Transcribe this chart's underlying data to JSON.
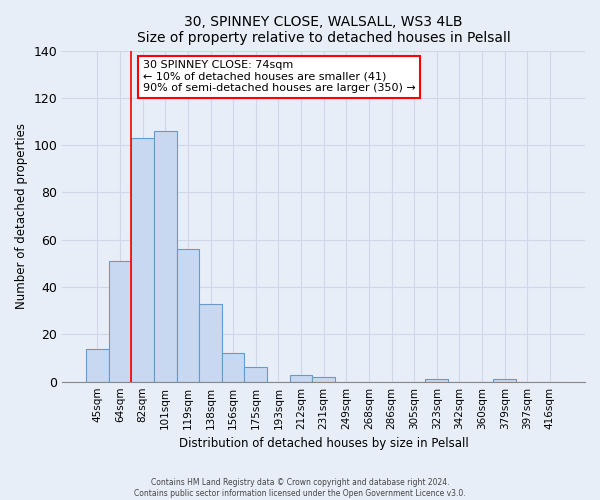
{
  "title": "30, SPINNEY CLOSE, WALSALL, WS3 4LB",
  "subtitle": "Size of property relative to detached houses in Pelsall",
  "xlabel": "Distribution of detached houses by size in Pelsall",
  "ylabel": "Number of detached properties",
  "bar_labels": [
    "45sqm",
    "64sqm",
    "82sqm",
    "101sqm",
    "119sqm",
    "138sqm",
    "156sqm",
    "175sqm",
    "193sqm",
    "212sqm",
    "231sqm",
    "249sqm",
    "268sqm",
    "286sqm",
    "305sqm",
    "323sqm",
    "342sqm",
    "360sqm",
    "379sqm",
    "397sqm",
    "416sqm"
  ],
  "bar_values": [
    14,
    51,
    103,
    106,
    56,
    33,
    12,
    6,
    0,
    3,
    2,
    0,
    0,
    0,
    0,
    1,
    0,
    0,
    1,
    0,
    0
  ],
  "bar_color": "#c8d8f0",
  "bar_edge_color": "#6699cc",
  "marker_color": "red",
  "ylim": [
    0,
    140
  ],
  "yticks": [
    0,
    20,
    40,
    60,
    80,
    100,
    120,
    140
  ],
  "annotation_text": "30 SPINNEY CLOSE: 74sqm\n← 10% of detached houses are smaller (41)\n90% of semi-detached houses are larger (350) →",
  "annotation_box_color": "white",
  "annotation_box_edge": "red",
  "footer_line1": "Contains HM Land Registry data © Crown copyright and database right 2024.",
  "footer_line2": "Contains public sector information licensed under the Open Government Licence v3.0.",
  "background_color": "#e8eef8",
  "plot_background": "#e8eef8",
  "grid_color": "#d0d8e8"
}
